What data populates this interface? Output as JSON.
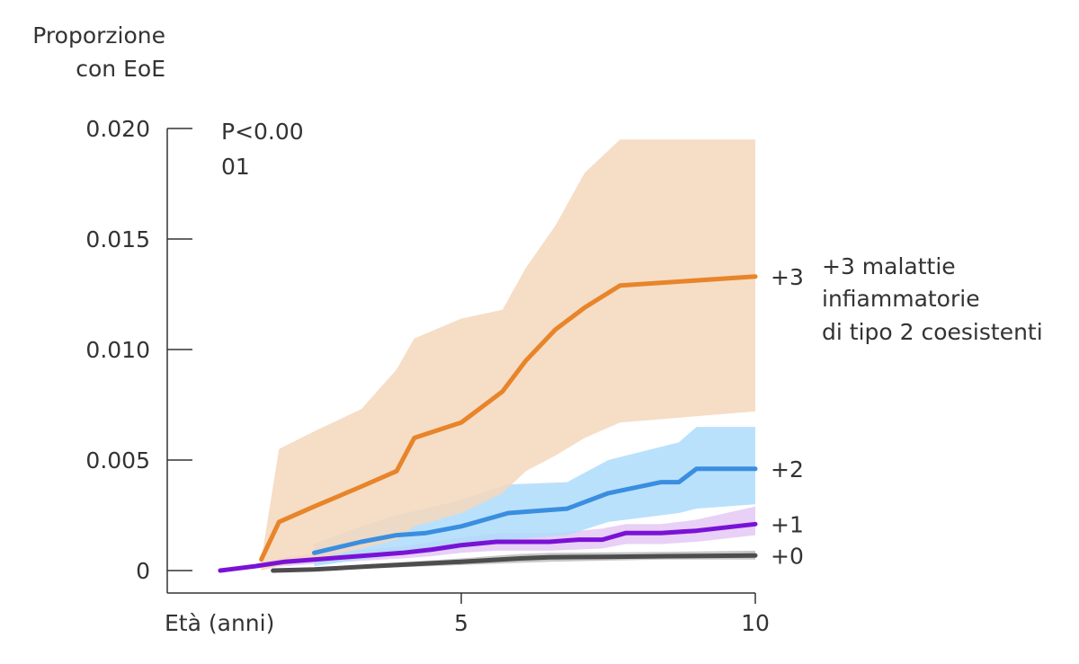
{
  "chart_data": {
    "type": "line",
    "ylabel": [
      "Proporzione",
      "con EoE"
    ],
    "xlabel": "Età (anni)",
    "xlim": [
      0,
      10
    ],
    "ylim": [
      0,
      0.02
    ],
    "yticks": [
      {
        "value": 0,
        "label": "0"
      },
      {
        "value": 0.005,
        "label": "0.005"
      },
      {
        "value": 0.01,
        "label": "0.010"
      },
      {
        "value": 0.015,
        "label": "0.015"
      },
      {
        "value": 0.02,
        "label": "0.020"
      }
    ],
    "xticks": [
      {
        "value": 5,
        "label": "5"
      },
      {
        "value": 10,
        "label": "10"
      }
    ],
    "pvalue_label": [
      "P<0.00",
      "01"
    ],
    "legend": [
      "+3 malattie",
      "infiammatorie",
      "di tipo 2 coesistenti"
    ],
    "series": [
      {
        "name": "+0",
        "label": "+0",
        "color": "#4d4d4d",
        "band_color": "#bdbdbd",
        "x": [
          1.8,
          2.5,
          3.5,
          5.0,
          6.0,
          6.5,
          7.5,
          8.5,
          10.0
        ],
        "y": [
          0.0,
          5e-05,
          0.0002,
          0.0004,
          0.00055,
          0.0006,
          0.00062,
          0.00065,
          0.00068
        ],
        "lower": [
          0.0,
          2e-05,
          0.0001,
          0.00025,
          0.00035,
          0.0004,
          0.00045,
          0.0005,
          0.0005
        ],
        "upper": [
          0.0,
          0.0001,
          0.0003,
          0.00055,
          0.00075,
          0.0008,
          0.00082,
          0.00085,
          0.0009
        ]
      },
      {
        "name": "+1",
        "label": "+1",
        "color": "#7a12d6",
        "band_color": "#e4c8f5",
        "x": [
          0.9,
          1.5,
          2.0,
          2.5,
          3.0,
          4.0,
          4.5,
          5.0,
          5.6,
          6.0,
          6.5,
          7.0,
          7.4,
          7.8,
          8.4,
          9.0,
          10.0
        ],
        "y": [
          0.0,
          0.0002,
          0.0004,
          0.0005,
          0.0006,
          0.0008,
          0.00095,
          0.00115,
          0.0013,
          0.0013,
          0.0013,
          0.0014,
          0.0014,
          0.0017,
          0.0017,
          0.0018,
          0.0021
        ],
        "lower": [
          0.0,
          0.0001,
          0.0002,
          0.0003,
          0.0004,
          0.00055,
          0.00065,
          0.0008,
          0.0009,
          0.0009,
          0.0009,
          0.00095,
          0.001,
          0.0012,
          0.0012,
          0.0013,
          0.0016
        ],
        "upper": [
          0.0,
          0.0003,
          0.0006,
          0.00075,
          0.00085,
          0.0011,
          0.0013,
          0.0015,
          0.0017,
          0.0017,
          0.0017,
          0.0018,
          0.0019,
          0.0021,
          0.0021,
          0.0023,
          0.0029
        ]
      },
      {
        "name": "+2",
        "label": "+2",
        "color": "#3a8ee0",
        "band_color": "#aedcfb",
        "x": [
          2.5,
          3.3,
          3.9,
          4.4,
          5.0,
          5.8,
          6.8,
          7.5,
          8.4,
          8.7,
          9.0,
          10.0
        ],
        "y": [
          0.0008,
          0.0013,
          0.0016,
          0.0017,
          0.002,
          0.0026,
          0.0028,
          0.0035,
          0.004,
          0.004,
          0.0046,
          0.0046
        ],
        "lower": [
          0.0002,
          0.0005,
          0.0007,
          0.0008,
          0.001,
          0.0014,
          0.0016,
          0.0022,
          0.0025,
          0.0026,
          0.0028,
          0.003
        ],
        "upper": [
          0.0012,
          0.002,
          0.0025,
          0.0028,
          0.0032,
          0.0039,
          0.004,
          0.005,
          0.0056,
          0.0058,
          0.0065,
          0.0065
        ]
      },
      {
        "name": "+3",
        "label": "+3",
        "color": "#e8842a",
        "band_color": "#f4d7bc",
        "x": [
          1.6,
          1.9,
          2.5,
          3.3,
          3.9,
          4.2,
          5.0,
          5.7,
          6.1,
          6.6,
          7.1,
          7.7,
          10.0
        ],
        "y": [
          0.0005,
          0.0022,
          0.0029,
          0.0038,
          0.0045,
          0.006,
          0.0067,
          0.0081,
          0.0095,
          0.0109,
          0.0119,
          0.0129,
          0.0133
        ],
        "lower": [
          0.0,
          0.0002,
          0.0005,
          0.001,
          0.0014,
          0.002,
          0.0026,
          0.0035,
          0.0045,
          0.0052,
          0.006,
          0.0067,
          0.0072
        ],
        "upper": [
          0.0005,
          0.0055,
          0.0063,
          0.0073,
          0.0091,
          0.0105,
          0.0114,
          0.0118,
          0.0137,
          0.0156,
          0.018,
          0.0195,
          0.0195
        ]
      }
    ]
  }
}
